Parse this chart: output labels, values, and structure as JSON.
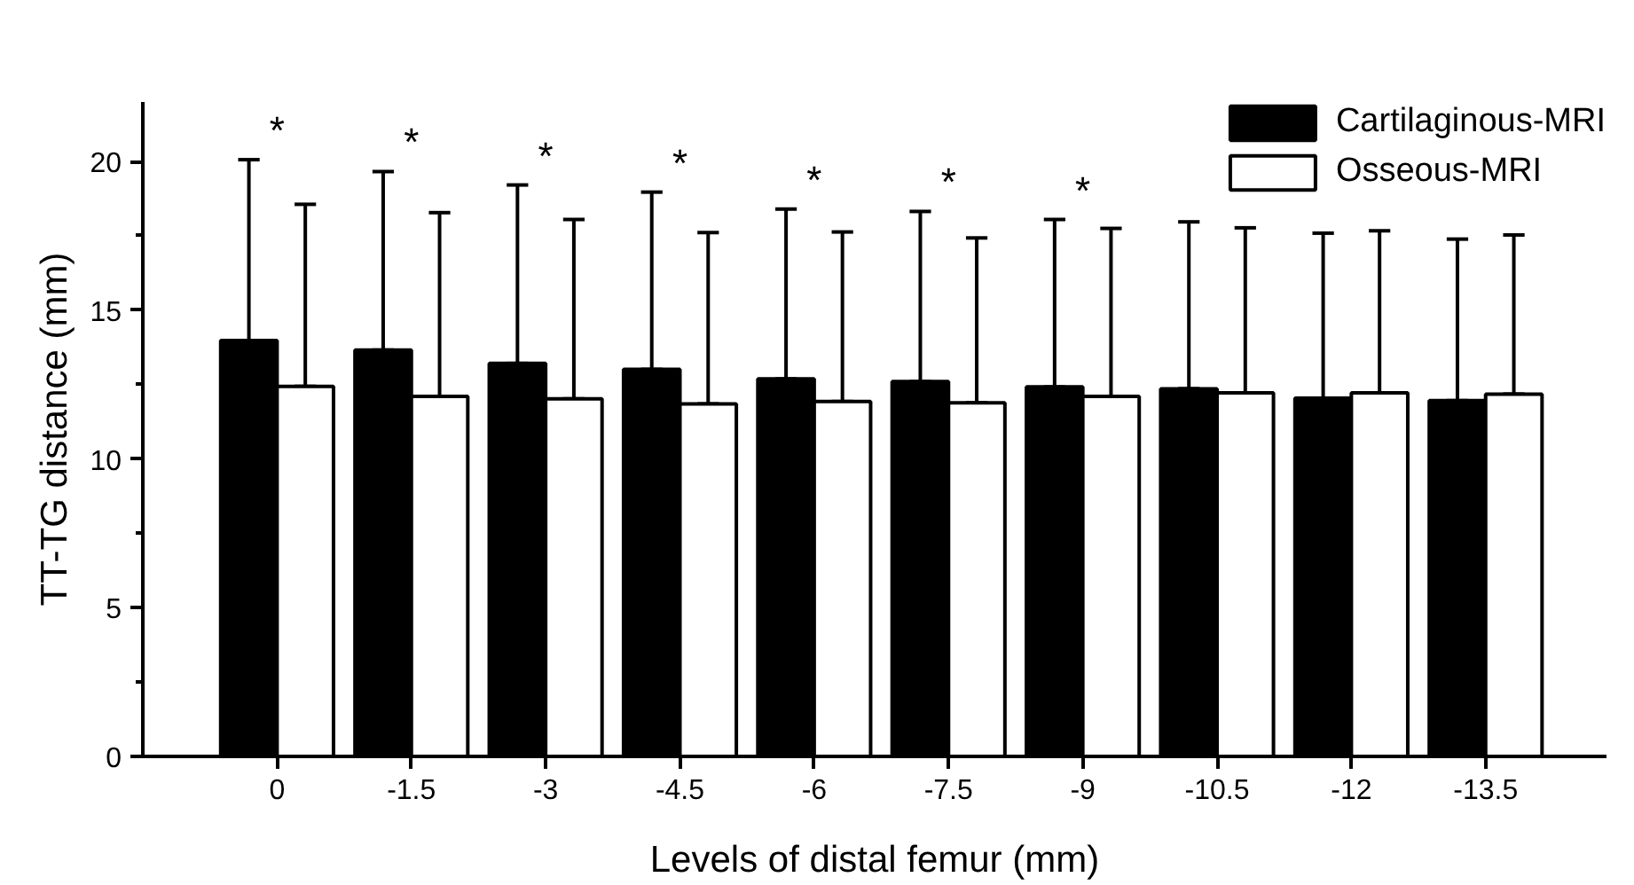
{
  "chart_data": {
    "type": "bar",
    "xlabel": "Levels of distal femur (mm)",
    "ylabel": "TT-TG distance (mm)",
    "categories": [
      "0",
      "-1.5",
      "-3",
      "-4.5",
      "-6",
      "-7.5",
      "-9",
      "-10.5",
      "-12",
      "-13.5"
    ],
    "series": [
      {
        "name": "Cartilaginous-MRI",
        "color": "#000000",
        "values": [
          13.98,
          13.66,
          13.21,
          13.01,
          12.69,
          12.6,
          12.42,
          12.36,
          12.04,
          11.96
        ],
        "errors": [
          [
            13.98,
            20.06
          ],
          [
            13.66,
            19.66
          ],
          [
            13.21,
            19.21
          ],
          [
            13.01,
            18.97
          ],
          [
            12.69,
            18.4
          ],
          [
            12.6,
            18.32
          ],
          [
            12.42,
            18.05
          ],
          [
            12.36,
            17.97
          ],
          [
            12.04,
            17.59
          ],
          [
            11.96,
            17.39
          ]
        ]
      },
      {
        "name": "Osseous-MRI",
        "color": "#ffffff",
        "values": [
          12.44,
          12.1,
          12.02,
          11.85,
          11.93,
          11.89,
          12.1,
          12.22,
          12.22,
          12.18
        ],
        "errors": [
          [
            12.44,
            18.56
          ],
          [
            12.1,
            18.28
          ],
          [
            12.02,
            18.05
          ],
          [
            11.85,
            17.61
          ],
          [
            11.93,
            17.63
          ],
          [
            11.89,
            17.43
          ],
          [
            12.1,
            17.75
          ],
          [
            12.22,
            17.77
          ],
          [
            12.22,
            17.67
          ],
          [
            12.18,
            17.53
          ]
        ]
      }
    ],
    "ylim": [
      0,
      22
    ],
    "yticks": [
      0,
      5,
      10,
      15,
      20
    ],
    "grid": false,
    "legend": "top right",
    "annotations": [
      "*",
      "*",
      "*",
      "*",
      "*",
      "*",
      "*"
    ]
  }
}
